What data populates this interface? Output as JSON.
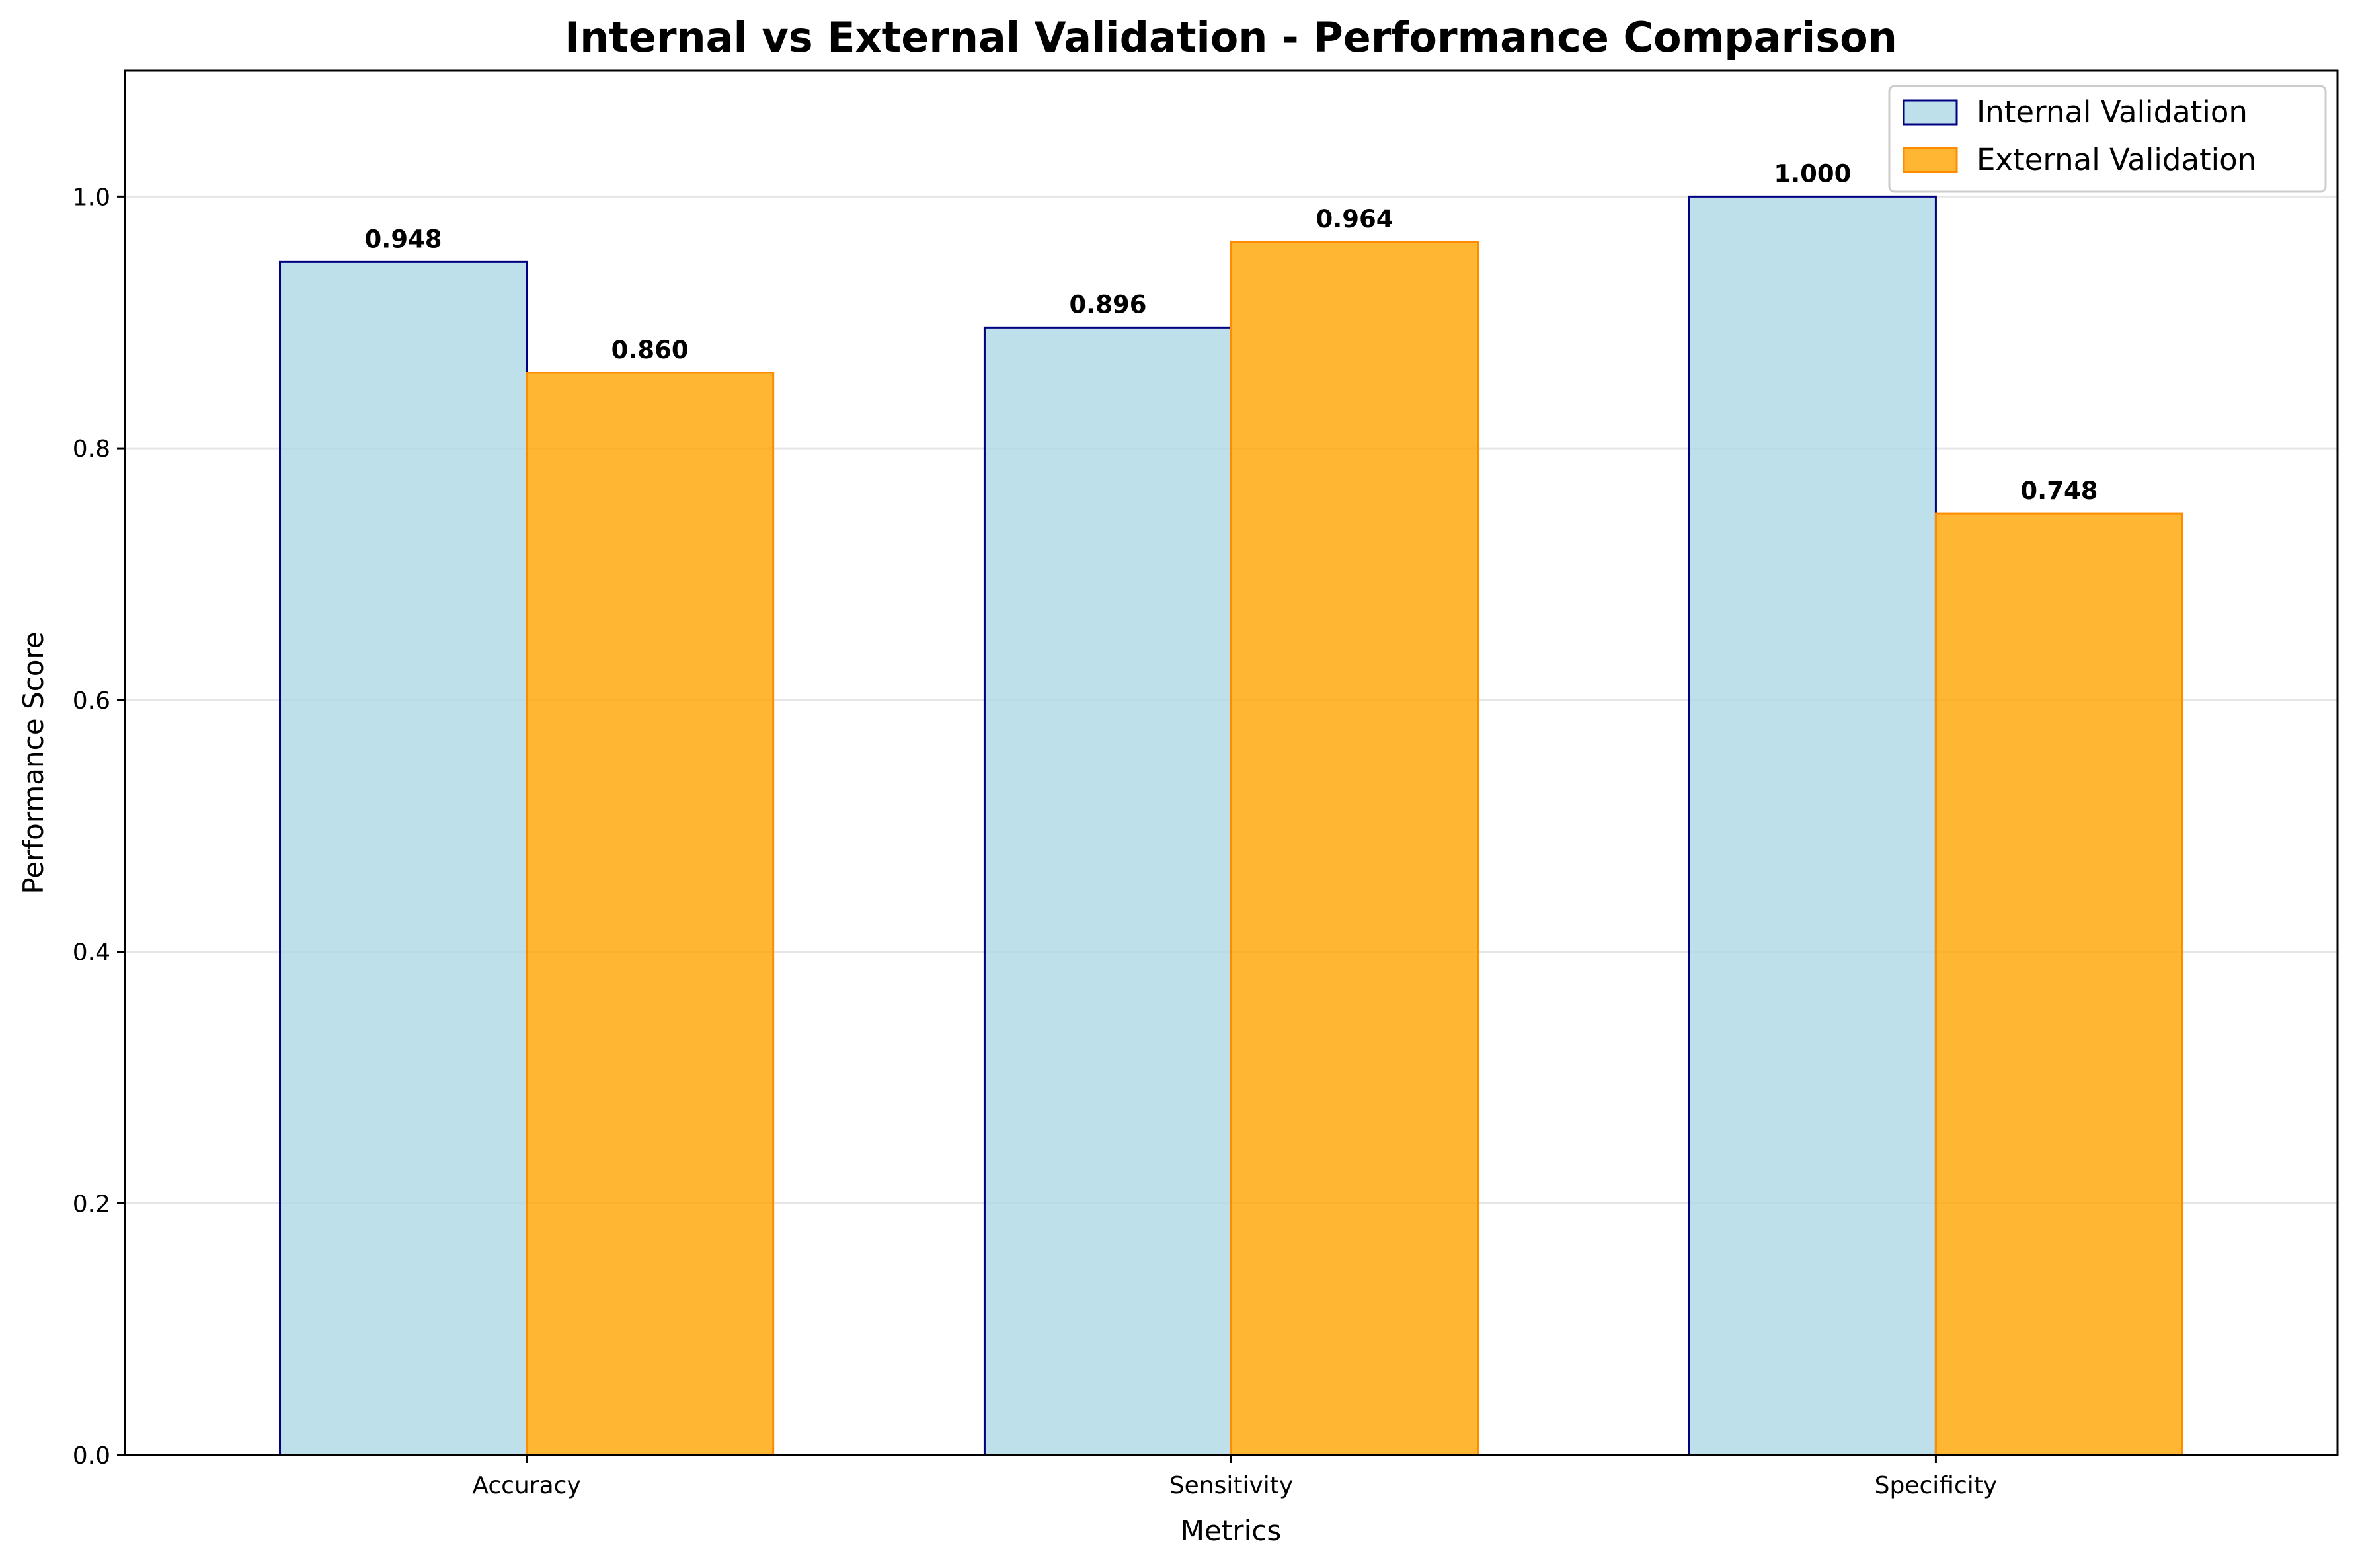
{
  "chart_data": {
    "type": "bar",
    "title": "Internal vs External Validation - Performance Comparison",
    "xlabel": "Metrics",
    "ylabel": "Performance Score",
    "categories": [
      "Accuracy",
      "Sensitivity",
      "Specificity"
    ],
    "series": [
      {
        "name": "Internal Validation",
        "values": [
          0.948,
          0.896,
          1.0
        ],
        "value_labels": [
          "0.948",
          "0.896",
          "1.000"
        ],
        "fill": "#add8e6",
        "edge": "#000080"
      },
      {
        "name": "External Validation",
        "values": [
          0.86,
          0.964,
          0.748
        ],
        "value_labels": [
          "0.860",
          "0.964",
          "0.748"
        ],
        "fill": "#ffa500",
        "edge": "#ff8c00"
      }
    ],
    "ylim": [
      0,
      1.1
    ],
    "yticks": [
      0.0,
      0.2,
      0.4,
      0.6,
      0.8,
      1.0
    ],
    "ytick_labels": [
      "0.0",
      "0.2",
      "0.4",
      "0.6",
      "0.8",
      "1.0"
    ],
    "grid": "y",
    "legend_position": "top-right"
  }
}
